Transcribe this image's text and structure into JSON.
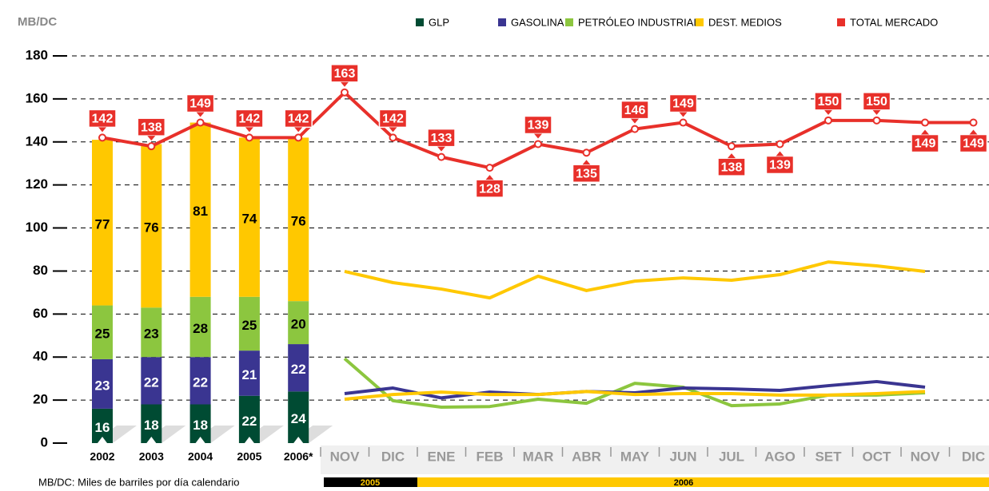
{
  "chart_data": {
    "type": "bar_line",
    "y_label": "MB/DC",
    "footnote": "MB/DC: Miles de barriles por día calendario",
    "categories": [
      "2002",
      "2003",
      "2004",
      "2005",
      "2006*",
      "NOV",
      "DIC",
      "ENE",
      "FEB",
      "MAR",
      "ABR",
      "MAY",
      "JUN",
      "JUL",
      "AGO",
      "SET",
      "OCT",
      "NOV",
      "DIC"
    ],
    "periods": [
      "2005",
      "2006"
    ],
    "ylim": [
      0,
      180
    ],
    "yticks": [
      0,
      20,
      40,
      60,
      80,
      100,
      120,
      140,
      160,
      180
    ],
    "grid": true,
    "series": [
      {
        "name": "GLP",
        "color": "#004b33",
        "line_color": "#ffc800",
        "values": [
          16,
          18,
          18,
          22,
          24,
          20.4,
          22.6,
          23.7,
          22.6,
          22.6,
          24,
          22.6,
          23,
          23,
          22.3,
          22.3,
          23,
          24,
          null
        ]
      },
      {
        "name": "GASOLINA",
        "color": "#3a3591",
        "values": [
          23,
          22,
          22,
          21,
          22,
          23,
          25.6,
          21,
          23.7,
          22.6,
          24,
          23.4,
          25.6,
          25.2,
          24.5,
          26.7,
          28.6,
          26,
          null
        ]
      },
      {
        "name": "PETRÓLEO INDUSTRIAL",
        "color": "#8cc63f",
        "values": [
          25,
          23,
          28,
          25,
          20,
          39.3,
          19.7,
          16.7,
          17,
          20.4,
          18.5,
          27.8,
          26,
          17.4,
          18.2,
          22.3,
          22.3,
          23.4,
          null
        ]
      },
      {
        "name": "DEST. MEDIOS",
        "color": "#ffc800",
        "values": [
          77,
          76,
          81,
          74,
          76,
          79.8,
          74.6,
          71.6,
          67.5,
          77.6,
          70.9,
          75.3,
          76.8,
          75.7,
          78.3,
          84.2,
          82.4,
          79.8,
          null
        ]
      },
      {
        "name": "TOTAL MERCADO",
        "color": "#e8302a",
        "values": [
          142,
          138,
          149,
          142,
          142,
          163,
          142,
          133,
          128,
          139,
          135,
          146,
          149,
          138,
          139,
          150,
          150,
          149,
          149
        ]
      }
    ]
  }
}
